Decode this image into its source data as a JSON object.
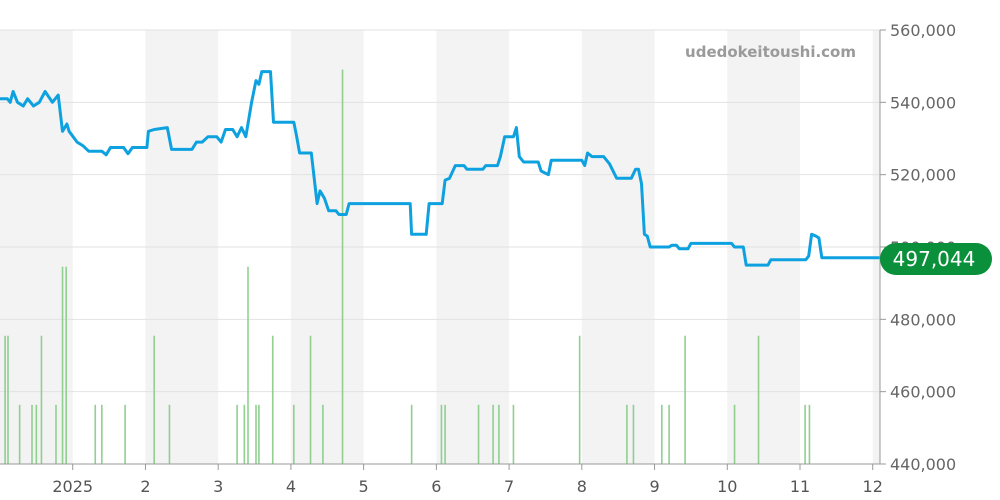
{
  "watermark": "udedokeitoushi.com",
  "current_price_label": "497,044",
  "colors": {
    "price_line": "#0ea1e0",
    "volume_bar": "#8fd08f",
    "badge": "#0a8f3a",
    "band": "#f3f3f3",
    "grid": "#e2e2e2"
  },
  "chart_data": {
    "type": "line",
    "title": "",
    "xlabel": "",
    "ylabel": "",
    "ylim": [
      440000,
      560000
    ],
    "y_ticks": [
      "440,000",
      "460,000",
      "480,000",
      "500,000",
      "520,000",
      "540,000",
      "560,000"
    ],
    "y_tick_values": [
      440000,
      460000,
      480000,
      500000,
      520000,
      540000,
      560000
    ],
    "x_ticks": [
      "2025",
      "2",
      "3",
      "4",
      "5",
      "6",
      "7",
      "8",
      "9",
      "10",
      "11",
      "12"
    ],
    "xlim": [
      0,
      12.1
    ],
    "x_tick_positions": [
      1,
      2,
      3,
      4,
      5,
      6,
      7,
      8,
      9,
      10,
      11,
      12
    ],
    "series": [
      {
        "values": [
          [
            0.0,
            541000
          ],
          [
            0.1,
            541000
          ],
          [
            0.14,
            540000
          ],
          [
            0.18,
            543000
          ],
          [
            0.24,
            540000
          ],
          [
            0.32,
            539000
          ],
          [
            0.38,
            541000
          ],
          [
            0.46,
            539000
          ],
          [
            0.54,
            540000
          ],
          [
            0.62,
            543000
          ],
          [
            0.72,
            540000
          ],
          [
            0.8,
            542000
          ],
          [
            0.86,
            532000
          ],
          [
            0.92,
            534000
          ],
          [
            0.95,
            532000
          ],
          [
            1.06,
            529000
          ],
          [
            1.14,
            528000
          ],
          [
            1.22,
            526500
          ],
          [
            1.32,
            526500
          ],
          [
            1.4,
            526500
          ],
          [
            1.46,
            525500
          ],
          [
            1.52,
            527500
          ],
          [
            1.7,
            527500
          ],
          [
            1.76,
            525800
          ],
          [
            1.82,
            527500
          ],
          [
            2.02,
            527500
          ],
          [
            2.04,
            532000
          ],
          [
            2.12,
            532500
          ],
          [
            2.3,
            533000
          ],
          [
            2.36,
            527000
          ],
          [
            2.64,
            527000
          ],
          [
            2.7,
            529000
          ],
          [
            2.78,
            529000
          ],
          [
            2.86,
            530500
          ],
          [
            2.98,
            530500
          ],
          [
            3.04,
            529000
          ],
          [
            3.1,
            532500
          ],
          [
            3.2,
            532500
          ],
          [
            3.26,
            530500
          ],
          [
            3.32,
            533000
          ],
          [
            3.38,
            530500
          ],
          [
            3.46,
            540000
          ],
          [
            3.52,
            546000
          ],
          [
            3.56,
            545000
          ],
          [
            3.6,
            548500
          ],
          [
            3.72,
            548500
          ],
          [
            3.76,
            534500
          ],
          [
            4.04,
            534500
          ],
          [
            4.08,
            530500
          ],
          [
            4.12,
            526000
          ],
          [
            4.28,
            526000
          ],
          [
            4.36,
            512000
          ],
          [
            4.4,
            515500
          ],
          [
            4.46,
            513500
          ],
          [
            4.52,
            510000
          ],
          [
            4.62,
            510000
          ],
          [
            4.66,
            509000
          ],
          [
            4.76,
            509000
          ],
          [
            4.8,
            512000
          ],
          [
            5.64,
            512000
          ],
          [
            5.66,
            503500
          ],
          [
            5.86,
            503500
          ],
          [
            5.9,
            512000
          ],
          [
            6.08,
            512000
          ],
          [
            6.12,
            518500
          ],
          [
            6.18,
            519000
          ],
          [
            6.26,
            522500
          ],
          [
            6.38,
            522500
          ],
          [
            6.42,
            521500
          ],
          [
            6.64,
            521500
          ],
          [
            6.68,
            522500
          ],
          [
            6.84,
            522500
          ],
          [
            6.88,
            525000
          ],
          [
            6.94,
            530500
          ],
          [
            7.06,
            530500
          ],
          [
            7.1,
            533000
          ],
          [
            7.14,
            525000
          ],
          [
            7.2,
            523500
          ],
          [
            7.4,
            523500
          ],
          [
            7.44,
            521000
          ],
          [
            7.54,
            520000
          ],
          [
            7.58,
            524000
          ],
          [
            8.0,
            524000
          ],
          [
            8.04,
            522500
          ],
          [
            8.08,
            526000
          ],
          [
            8.14,
            525000
          ],
          [
            8.3,
            525000
          ],
          [
            8.38,
            523000
          ],
          [
            8.48,
            519000
          ],
          [
            8.68,
            519000
          ],
          [
            8.74,
            521500
          ],
          [
            8.78,
            521500
          ],
          [
            8.82,
            517500
          ],
          [
            8.86,
            503500
          ],
          [
            8.9,
            503000
          ],
          [
            8.94,
            500000
          ],
          [
            9.2,
            500000
          ],
          [
            9.24,
            500500
          ],
          [
            9.3,
            500500
          ],
          [
            9.34,
            499500
          ],
          [
            9.46,
            499500
          ],
          [
            9.5,
            501000
          ],
          [
            10.06,
            501000
          ],
          [
            10.1,
            500000
          ],
          [
            10.22,
            500000
          ],
          [
            10.26,
            495000
          ],
          [
            10.56,
            495000
          ],
          [
            10.6,
            496500
          ],
          [
            11.08,
            496500
          ],
          [
            11.12,
            497500
          ],
          [
            11.16,
            503500
          ],
          [
            11.22,
            503000
          ],
          [
            11.26,
            502500
          ],
          [
            11.3,
            497044
          ],
          [
            12.1,
            497044
          ]
        ]
      }
    ],
    "volume": {
      "x": [
        0.07,
        0.11,
        0.27,
        0.44,
        0.5,
        0.57,
        0.77,
        0.86,
        0.91,
        1.31,
        1.4,
        1.72,
        2.12,
        2.33,
        3.26,
        3.36,
        3.41,
        3.52,
        3.56,
        3.75,
        4.04,
        4.27,
        4.44,
        4.71,
        5.66,
        6.07,
        6.12,
        6.58,
        6.78,
        6.86,
        7.06,
        7.97,
        8.62,
        8.71,
        9.1,
        9.2,
        9.42,
        10.1,
        10.43,
        11.07,
        11.13
      ],
      "values": [
        13,
        13,
        6,
        6,
        6,
        13,
        6,
        20,
        20,
        6,
        6,
        6,
        13,
        6,
        6,
        6,
        20,
        6,
        6,
        13,
        6,
        13,
        6,
        40,
        6,
        6,
        6,
        6,
        6,
        6,
        6,
        13,
        6,
        6,
        6,
        6,
        13,
        6,
        13,
        6,
        6
      ],
      "ylim": [
        0,
        44
      ]
    }
  }
}
